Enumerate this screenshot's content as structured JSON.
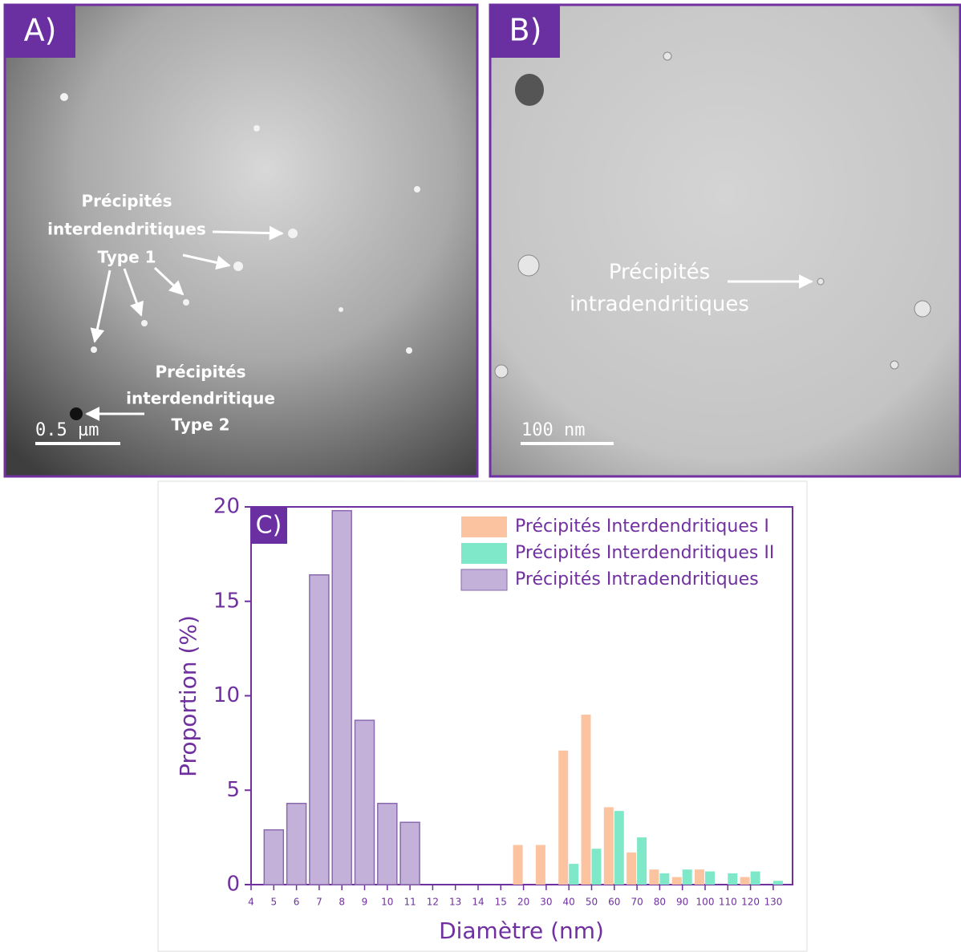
{
  "panels": [
    {
      "label": "A)",
      "annotations": [
        {
          "lines": [
            "Précipités",
            "interdendritiques",
            "Type 1"
          ]
        },
        {
          "lines": [
            "Précipités",
            "interdendritique",
            "Type 2"
          ]
        }
      ],
      "scale_bar": "0.5 µm"
    },
    {
      "label": "B)",
      "annotations": [
        {
          "lines": [
            "Précipités",
            "intradendritiques"
          ]
        }
      ],
      "scale_bar": "100 nm"
    }
  ],
  "chart_data": {
    "type": "bar",
    "panel_label": "C)",
    "x_label": "Diamètre (nm)",
    "y_label": "Proportion (%)",
    "categories": [
      "4",
      "5",
      "6",
      "7",
      "8",
      "9",
      "10",
      "11",
      "12",
      "13",
      "14",
      "15",
      "20",
      "30",
      "40",
      "50",
      "60",
      "70",
      "80",
      "90",
      "100",
      "110",
      "120",
      "130"
    ],
    "series": [
      {
        "name": "Précipités Interdendritiques I",
        "color": "#fbc39f",
        "values": [
          null,
          null,
          null,
          null,
          null,
          null,
          null,
          null,
          null,
          null,
          null,
          null,
          2.1,
          2.1,
          7.1,
          9.0,
          4.1,
          1.7,
          0.8,
          0.4,
          0.8,
          null,
          0.4,
          null
        ]
      },
      {
        "name": "Précipités Interdendritiques II",
        "color": "#7fe8c8",
        "values": [
          null,
          null,
          null,
          null,
          null,
          null,
          null,
          null,
          null,
          null,
          null,
          null,
          null,
          null,
          1.1,
          1.9,
          3.9,
          2.5,
          0.6,
          0.8,
          0.7,
          0.6,
          0.7,
          0.2
        ]
      },
      {
        "name": "Précipités Intradendritiques",
        "color": "#c3b1d9",
        "values": [
          null,
          2.9,
          4.3,
          16.4,
          19.8,
          8.7,
          4.3,
          3.3,
          null,
          null,
          null,
          null,
          null,
          null,
          null,
          null,
          null,
          null,
          null,
          null,
          null,
          null,
          null,
          null
        ]
      }
    ],
    "ylim": [
      0,
      20
    ],
    "yticks": [
      0,
      5,
      10,
      15,
      20
    ]
  }
}
